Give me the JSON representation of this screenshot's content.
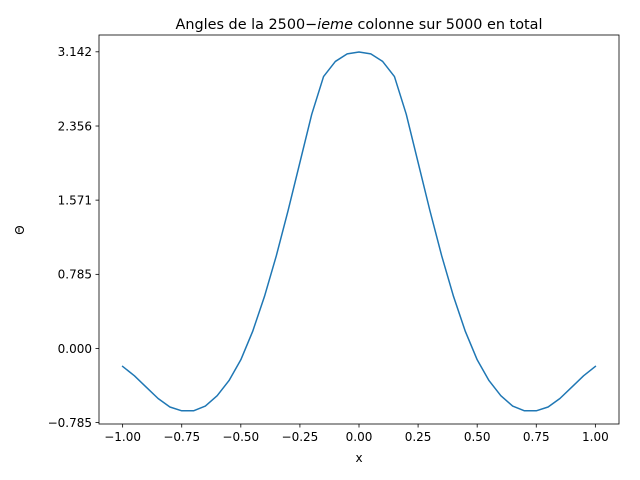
{
  "chart_data": {
    "type": "line",
    "title_prefix": "Angles de la 2500",
    "title_minus": "−",
    "title_italic": "ieme",
    "title_suffix": " colonne sur 5000 en total",
    "xlabel": "x",
    "ylabel": "Θ",
    "xlim": [
      -1.1,
      1.1
    ],
    "ylim": [
      -0.8,
      3.32
    ],
    "xticks": [
      -1.0,
      -0.75,
      -0.5,
      -0.25,
      0.0,
      0.25,
      0.5,
      0.75,
      1.0
    ],
    "xtick_labels": [
      "−1.00",
      "−0.75",
      "−0.50",
      "−0.25",
      "0.00",
      "0.25",
      "0.50",
      "0.75",
      "1.00"
    ],
    "yticks": [
      -0.785,
      0.0,
      0.785,
      1.571,
      2.356,
      3.142
    ],
    "ytick_labels": [
      "−0.785",
      "0.000",
      "0.785",
      "1.571",
      "2.356",
      "3.142"
    ],
    "grid": false,
    "series": [
      {
        "color": "#1f77b4",
        "x": [
          -1.0,
          -0.95,
          -0.9,
          -0.85,
          -0.8,
          -0.75,
          -0.7,
          -0.65,
          -0.6,
          -0.55,
          -0.5,
          -0.45,
          -0.4,
          -0.35,
          -0.3,
          -0.25,
          -0.2,
          -0.15,
          -0.1,
          -0.05,
          0.0,
          0.05,
          0.1,
          0.15,
          0.2,
          0.25,
          0.3,
          0.35,
          0.4,
          0.45,
          0.5,
          0.55,
          0.6,
          0.65,
          0.7,
          0.75,
          0.8,
          0.85,
          0.9,
          0.95,
          1.0
        ],
        "y": [
          -0.19,
          -0.29,
          -0.41,
          -0.53,
          -0.62,
          -0.66,
          -0.66,
          -0.61,
          -0.5,
          -0.34,
          -0.12,
          0.18,
          0.55,
          0.98,
          1.46,
          1.97,
          2.48,
          2.88,
          3.04,
          3.12,
          3.14,
          3.12,
          3.04,
          2.88,
          2.48,
          1.97,
          1.46,
          0.98,
          0.55,
          0.18,
          -0.12,
          -0.34,
          -0.5,
          -0.61,
          -0.66,
          -0.66,
          -0.62,
          -0.53,
          -0.41,
          -0.29,
          -0.19
        ]
      }
    ]
  }
}
